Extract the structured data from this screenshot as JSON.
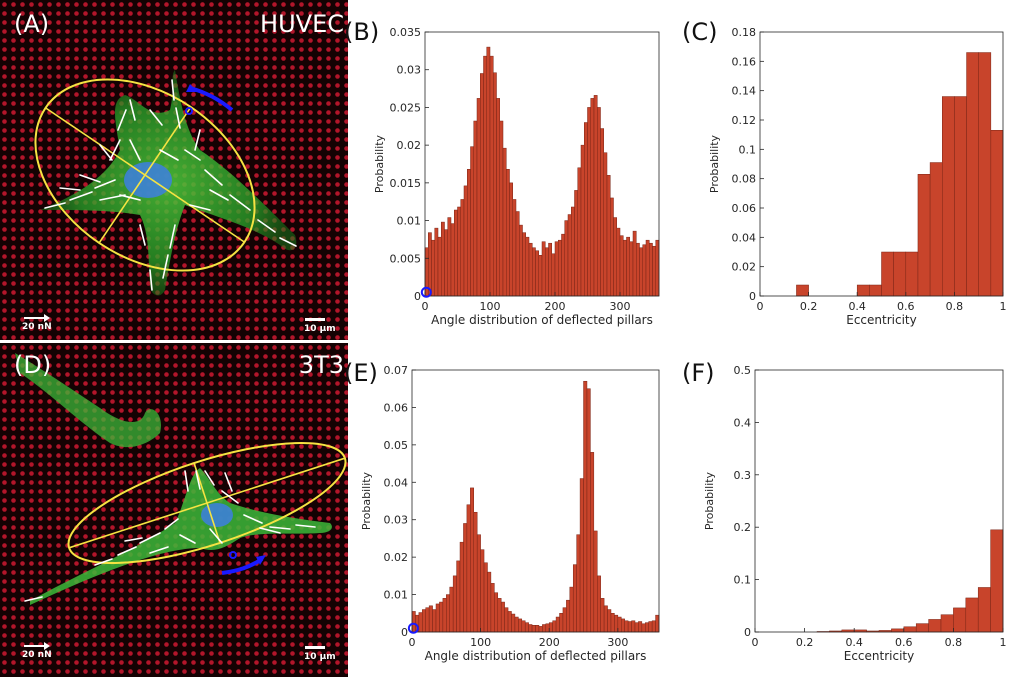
{
  "panels": {
    "A": {
      "letter": "(A)",
      "cell": "HUVEC",
      "force_scale": "20 nN",
      "length_scale": "10 μm"
    },
    "B": {
      "letter": "(B)"
    },
    "C": {
      "letter": "(C)"
    },
    "D": {
      "letter": "(D)",
      "cell": "3T3",
      "force_scale": "20 nN",
      "length_scale": "10 μm"
    },
    "E": {
      "letter": "(E)"
    },
    "F": {
      "letter": "(F)"
    }
  },
  "colors": {
    "bar": "#c8442b",
    "bar_edge": "#7a2516",
    "pillar": "#b2152a",
    "ellipse": "#f5e342",
    "force": "#ffffff",
    "marker": "#1a1aff"
  },
  "chart_data": [
    {
      "id": "B",
      "type": "bar",
      "xlabel": "Angle distribution of deflected pillars",
      "ylabel": "Probability",
      "xlim": [
        0,
        360
      ],
      "ylim": [
        0,
        0.035
      ],
      "bin_width": 5,
      "xticks": [
        0,
        100,
        200,
        300
      ],
      "yticks": [
        0,
        0.005,
        0.01,
        0.015,
        0.02,
        0.025,
        0.03,
        0.035
      ],
      "ytick_labels": [
        "0",
        "0.005",
        "0.01",
        "0.015",
        "0.02",
        "0.025",
        "0.03",
        "0.035"
      ],
      "values": [
        0.0064,
        0.0084,
        0.0074,
        0.009,
        0.0078,
        0.0098,
        0.0088,
        0.0104,
        0.0096,
        0.0114,
        0.0118,
        0.0128,
        0.0146,
        0.0168,
        0.0198,
        0.0232,
        0.0262,
        0.0295,
        0.0318,
        0.033,
        0.0318,
        0.0296,
        0.0262,
        0.0232,
        0.0196,
        0.0168,
        0.015,
        0.0128,
        0.0112,
        0.0094,
        0.0084,
        0.0078,
        0.007,
        0.0064,
        0.006,
        0.0054,
        0.0072,
        0.0064,
        0.007,
        0.0056,
        0.0072,
        0.0074,
        0.0082,
        0.01,
        0.0108,
        0.0118,
        0.014,
        0.017,
        0.02,
        0.023,
        0.025,
        0.0262,
        0.0266,
        0.025,
        0.0222,
        0.019,
        0.016,
        0.013,
        0.0104,
        0.009,
        0.008,
        0.0074,
        0.0078,
        0.0072,
        0.0086,
        0.007,
        0.0064,
        0.0068,
        0.0074,
        0.007,
        0.0066,
        0.0074
      ],
      "marker": {
        "x": 2,
        "y": 0.0005
      }
    },
    {
      "id": "C",
      "type": "bar",
      "xlabel": "Eccentricity",
      "ylabel": "Probability",
      "xlim": [
        0,
        1
      ],
      "ylim": [
        0,
        0.18
      ],
      "bin_width": 0.05,
      "xticks": [
        0,
        0.2,
        0.4,
        0.6,
        0.8,
        1
      ],
      "xtick_labels": [
        "0",
        "0.2",
        "0.4",
        "0.6",
        "0.8",
        "1"
      ],
      "yticks": [
        0,
        0.02,
        0.04,
        0.06,
        0.08,
        0.1,
        0.12,
        0.14,
        0.16,
        0.18
      ],
      "ytick_labels": [
        "0",
        "0.02",
        "0.04",
        "0.06",
        "0.08",
        "0.1",
        "0.12",
        "0.14",
        "0.16",
        "0.18"
      ],
      "values": [
        0,
        0,
        0,
        0.0075,
        0,
        0,
        0,
        0,
        0.0075,
        0.0075,
        0.03,
        0.03,
        0.03,
        0.083,
        0.091,
        0.136,
        0.136,
        0.166,
        0.166,
        0.113
      ]
    },
    {
      "id": "E",
      "type": "bar",
      "xlabel": "Angle distribution of deflected pillars",
      "ylabel": "Probability",
      "xlim": [
        0,
        360
      ],
      "ylim": [
        0,
        0.07
      ],
      "bin_width": 5,
      "xticks": [
        0,
        100,
        200,
        300
      ],
      "yticks": [
        0,
        0.01,
        0.02,
        0.03,
        0.04,
        0.05,
        0.06,
        0.07
      ],
      "ytick_labels": [
        "0",
        "0.01",
        "0.02",
        "0.03",
        "0.04",
        "0.05",
        "0.06",
        "0.07"
      ],
      "values": [
        0.0055,
        0.0045,
        0.0052,
        0.006,
        0.0065,
        0.007,
        0.006,
        0.0075,
        0.008,
        0.009,
        0.01,
        0.012,
        0.015,
        0.019,
        0.024,
        0.029,
        0.034,
        0.0385,
        0.032,
        0.026,
        0.022,
        0.0185,
        0.016,
        0.013,
        0.0105,
        0.009,
        0.008,
        0.0065,
        0.0055,
        0.0048,
        0.004,
        0.0035,
        0.003,
        0.0025,
        0.002,
        0.0018,
        0.0018,
        0.0015,
        0.002,
        0.0022,
        0.0025,
        0.003,
        0.004,
        0.005,
        0.0065,
        0.0085,
        0.012,
        0.018,
        0.026,
        0.041,
        0.067,
        0.065,
        0.048,
        0.027,
        0.015,
        0.009,
        0.007,
        0.006,
        0.005,
        0.0045,
        0.004,
        0.0035,
        0.003,
        0.0028,
        0.003,
        0.0025,
        0.0028,
        0.0022,
        0.0025,
        0.0028,
        0.003,
        0.0045
      ],
      "marker": {
        "x": 2,
        "y": 0.001
      }
    },
    {
      "id": "F",
      "type": "bar",
      "xlabel": "Eccentricity",
      "ylabel": "Probability",
      "xlim": [
        0,
        1
      ],
      "ylim": [
        0,
        0.5
      ],
      "bin_width": 0.05,
      "xticks": [
        0,
        0.2,
        0.4,
        0.6,
        0.8,
        1
      ],
      "xtick_labels": [
        "0",
        "0.2",
        "0.4",
        "0.6",
        "0.8",
        "1"
      ],
      "yticks": [
        0,
        0.1,
        0.2,
        0.3,
        0.4,
        0.5
      ],
      "ytick_labels": [
        "0",
        "0.1",
        "0.2",
        "0.3",
        "0.4",
        "0.5"
      ],
      "values": [
        0,
        0,
        0,
        0,
        0,
        0.001,
        0.002,
        0.004,
        0.004,
        0.002,
        0.003,
        0.006,
        0.01,
        0.016,
        0.024,
        0.033,
        0.046,
        0.065,
        0.085,
        0.195
      ]
    }
  ]
}
